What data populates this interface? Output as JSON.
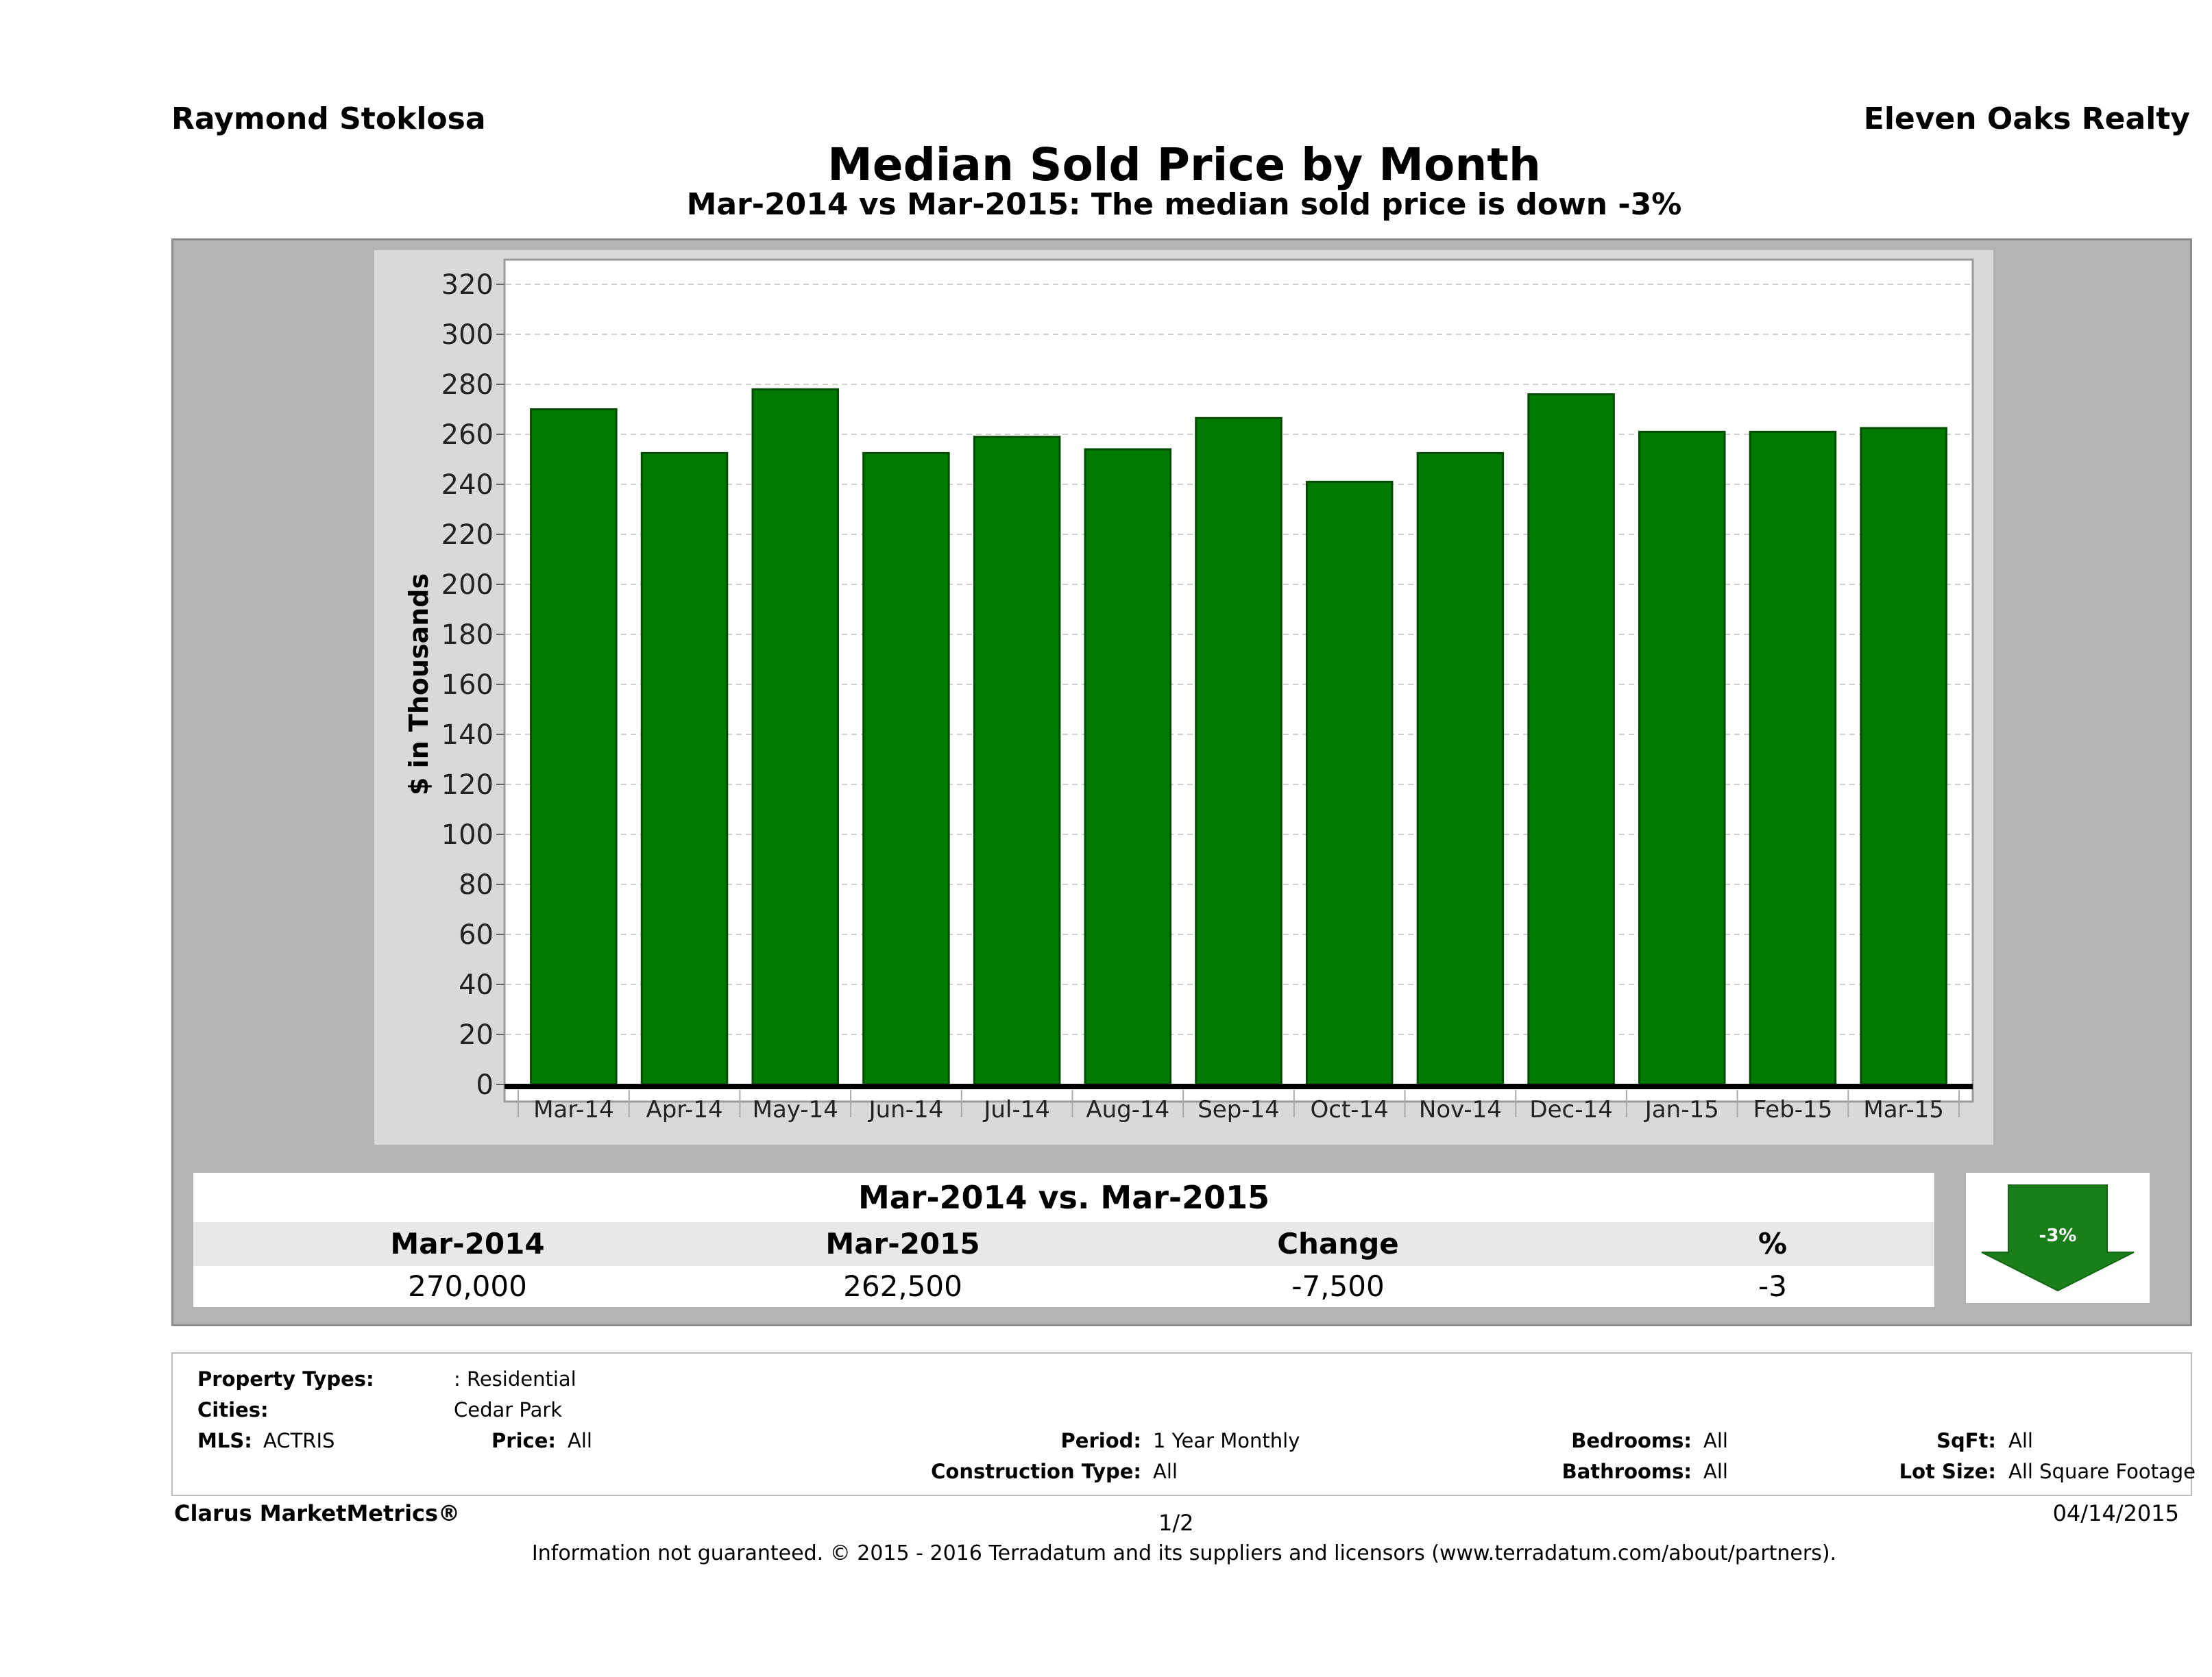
{
  "header": {
    "agent": "Raymond Stoklosa",
    "company": "Eleven Oaks Realty",
    "title": "Median Sold Price by Month",
    "subtitle": "Mar-2014 vs Mar-2015: The median sold price is down -3%"
  },
  "chart_data": {
    "type": "bar",
    "categories": [
      "Mar-14",
      "Apr-14",
      "May-14",
      "Jun-14",
      "Jul-14",
      "Aug-14",
      "Sep-14",
      "Oct-14",
      "Nov-14",
      "Dec-14",
      "Jan-15",
      "Feb-15",
      "Mar-15"
    ],
    "values": [
      270,
      252.5,
      278,
      252.5,
      259,
      254,
      266.5,
      241,
      252.5,
      276,
      261,
      261,
      262.5
    ],
    "ylabel": "$ in Thousands",
    "ylim": [
      0,
      320
    ],
    "yticks": [
      0,
      20,
      40,
      60,
      80,
      100,
      120,
      140,
      160,
      180,
      200,
      220,
      240,
      260,
      280,
      300,
      320
    ],
    "grid": true,
    "colors": {
      "bar": "#007a00",
      "bar_edge": "#004d00"
    }
  },
  "summary": {
    "heading": "Mar-2014 vs. Mar-2015",
    "columns": [
      "Mar-2014",
      "Mar-2015",
      "Change",
      "%"
    ],
    "values": [
      "270,000",
      "262,500",
      "-7,500",
      "-3"
    ],
    "badge": "-3%",
    "badge_icon": "down-arrow-icon",
    "badge_color": "#1a7f1a"
  },
  "filters": {
    "property_types_label": "Property Types:",
    "property_types_value": ": Residential",
    "cities_label": "Cities:",
    "cities_value": "Cedar Park",
    "mls_label": "MLS:",
    "mls_value": "ACTRIS",
    "price_label": "Price:",
    "price_value": "All",
    "period_label": "Period:",
    "period_value": "1 Year Monthly",
    "construction_label": "Construction Type:",
    "construction_value": "All",
    "bedrooms_label": "Bedrooms:",
    "bedrooms_value": "All",
    "bathrooms_label": "Bathrooms:",
    "bathrooms_value": "All",
    "sqft_label": "SqFt:",
    "sqft_value": "All",
    "lotsize_label": "Lot Size:",
    "lotsize_value": "All Square Footage"
  },
  "footer": {
    "brand": "Clarus MarketMetrics®",
    "page": "1/2",
    "date": "04/14/2015",
    "disclaimer": "Information not guaranteed. © 2015 - 2016 Terradatum and its suppliers and licensors (www.terradatum.com/about/partners)."
  }
}
